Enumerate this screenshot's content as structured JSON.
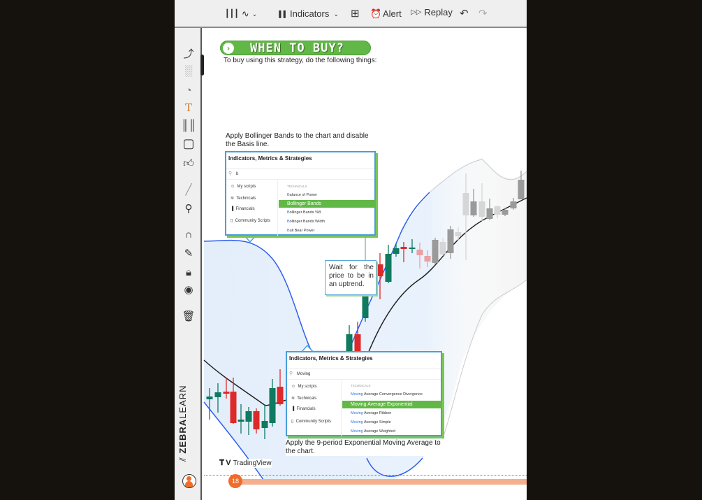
{
  "toolbar": {
    "chart_type_icon": "candles-icon",
    "line_icon": "line-chart-icon",
    "indicators_label": "Indicators",
    "alert_label": "Alert",
    "replay_label": "Replay",
    "undo_icon": "undo-icon",
    "redo_icon": "redo-icon"
  },
  "sidebar": {
    "tools": [
      "trend-line-icon",
      "indicator-chart-icon",
      "pie-icon",
      "text-icon",
      "pattern-icon",
      "rectangle-icon",
      "thumbs-up-icon",
      "ruler-icon",
      "zoom-icon",
      "magnet-icon",
      "pen-icon",
      "lock-icon",
      "eye-icon",
      "trash-icon"
    ],
    "brand_bold": "ZEBRA",
    "brand_light": "LEARN"
  },
  "content": {
    "banner_title": "WHEN TO BUY?",
    "intro": "To buy using this strategy, do the following things:",
    "step1": "Apply Bollinger Bands to the chart and disable the Basis line.",
    "step2": "Wait for the price to be in an uptrend.",
    "step3": "Apply the 9-period Exponential Moving Average to the chart.",
    "dialog1": {
      "title": "Indicators, Metrics & Strategies",
      "search": "b",
      "categories": [
        "My scripts",
        "Technicals",
        "Financials",
        "Community Scripts"
      ],
      "section": "TECHNICALS",
      "items": [
        {
          "hl": "B",
          "rest": "alance of Power"
        },
        {
          "hl": "",
          "rest": "Bollinger Bands"
        },
        {
          "hl": "B",
          "rest": "ollinger Bands %B"
        },
        {
          "hl": "B",
          "rest": "ollinger Bands Width"
        },
        {
          "hl": "B",
          "rest": "ull Bear Power"
        }
      ]
    },
    "dialog2": {
      "title": "Indicators, Metrics & Strategies",
      "search": "Moving",
      "categories": [
        "My scripts",
        "Technicals",
        "Financials",
        "Community Scripts"
      ],
      "section": "TECHNICALS",
      "items": [
        {
          "hl": "Moving",
          "rest": " Average Convergence Divergence"
        },
        {
          "hl": "",
          "rest": "Moving Average Exponential"
        },
        {
          "hl": "Moving",
          "rest": " Average Ribbon"
        },
        {
          "hl": "Moving",
          "rest": " Average Simple"
        },
        {
          "hl": "Moving",
          "rest": " Average Weighted"
        }
      ]
    },
    "tradingview_label": "TradingView",
    "page_number": "18"
  },
  "colors": {
    "accent_green": "#62b846",
    "bull": "#0e7a5f",
    "bear": "#dc2a2a",
    "band": "#2f5ff0",
    "page_orange": "#ef6c2b"
  }
}
